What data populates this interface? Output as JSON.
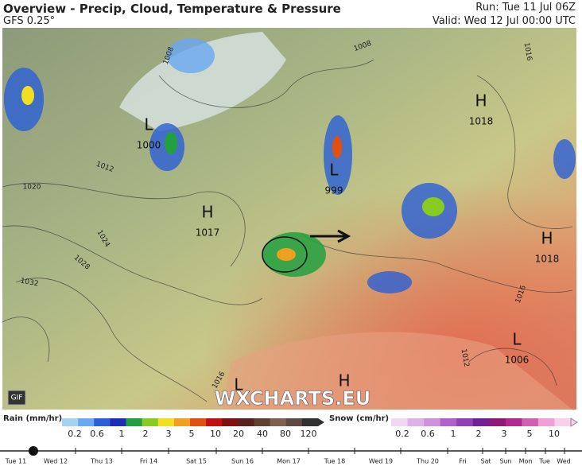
{
  "header": {
    "title": "Overview - Precip, Cloud, Temperature & Pressure",
    "model": "GFS 0.25°",
    "run": "Run: Tue 11 Jul 06Z",
    "valid": "Valid: Wed 12 Jul 00:00 UTC"
  },
  "map": {
    "pressure_centers": [
      {
        "symbol": "L",
        "value": 1000
      },
      {
        "symbol": "H",
        "value": 1017
      },
      {
        "symbol": "L",
        "value": 999
      },
      {
        "symbol": "H",
        "value": 1018
      },
      {
        "symbol": "H",
        "value": 1018
      },
      {
        "symbol": "L",
        "value": 1006
      },
      {
        "symbol": "H"
      },
      {
        "symbol": "L"
      }
    ],
    "isobar_labels": [
      1008,
      1008,
      1016,
      1012,
      1020,
      1024,
      1028,
      1032,
      1016,
      1012,
      1016
    ],
    "watermark": "WXCHARTS.EU",
    "gif_button": "GIF"
  },
  "legend": {
    "rain": {
      "title": "Rain (mm/hr)",
      "labels": [
        "0.2",
        "0.6",
        "1",
        "2",
        "3",
        "5",
        "10",
        "20",
        "40",
        "80",
        "120"
      ]
    },
    "snow": {
      "title": "Snow (cm/hr)",
      "labels": [
        "0.2",
        "0.6",
        "1",
        "2",
        "3",
        "5",
        "10"
      ]
    }
  },
  "timeline": [
    "Tue 11",
    "Wed 12",
    "Thu 13",
    "Fri 14",
    "Sat 15",
    "Sun 16",
    "Mon 17",
    "Tue 18",
    "Wed 19",
    "Thu 20",
    "Fri",
    "Sat",
    "Sun",
    "Mon",
    "Tue",
    "Wed"
  ]
}
